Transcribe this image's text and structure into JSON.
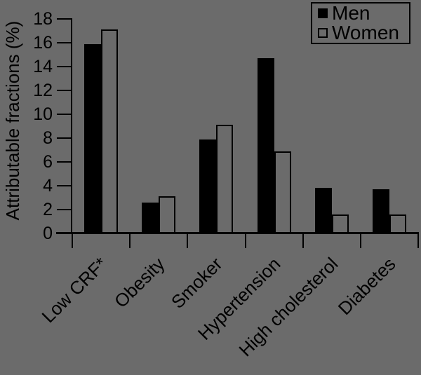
{
  "chart_data": {
    "type": "bar",
    "title": "",
    "xlabel": "",
    "ylabel": "Attributable fractions (%)",
    "categories": [
      "Low CRF*",
      "Obesity",
      "Smoker",
      "Hypertension",
      "High cholesterol",
      "Diabetes"
    ],
    "series": [
      {
        "name": "Men",
        "color": "#000000",
        "values": [
          15.9,
          2.6,
          7.9,
          14.7,
          3.8,
          3.7
        ]
      },
      {
        "name": "Women",
        "color": "#6b6b6b",
        "border_color": "#000000",
        "values": [
          17.1,
          3.1,
          9.1,
          6.9,
          1.6,
          1.6
        ]
      }
    ],
    "ylim": [
      0,
      18
    ],
    "yticks": [
      0,
      2,
      4,
      6,
      8,
      10,
      12,
      14,
      16,
      18
    ],
    "grid": false,
    "legend_position": "top-right",
    "background_color": "#6b6b6b",
    "text_color": "#000000"
  }
}
